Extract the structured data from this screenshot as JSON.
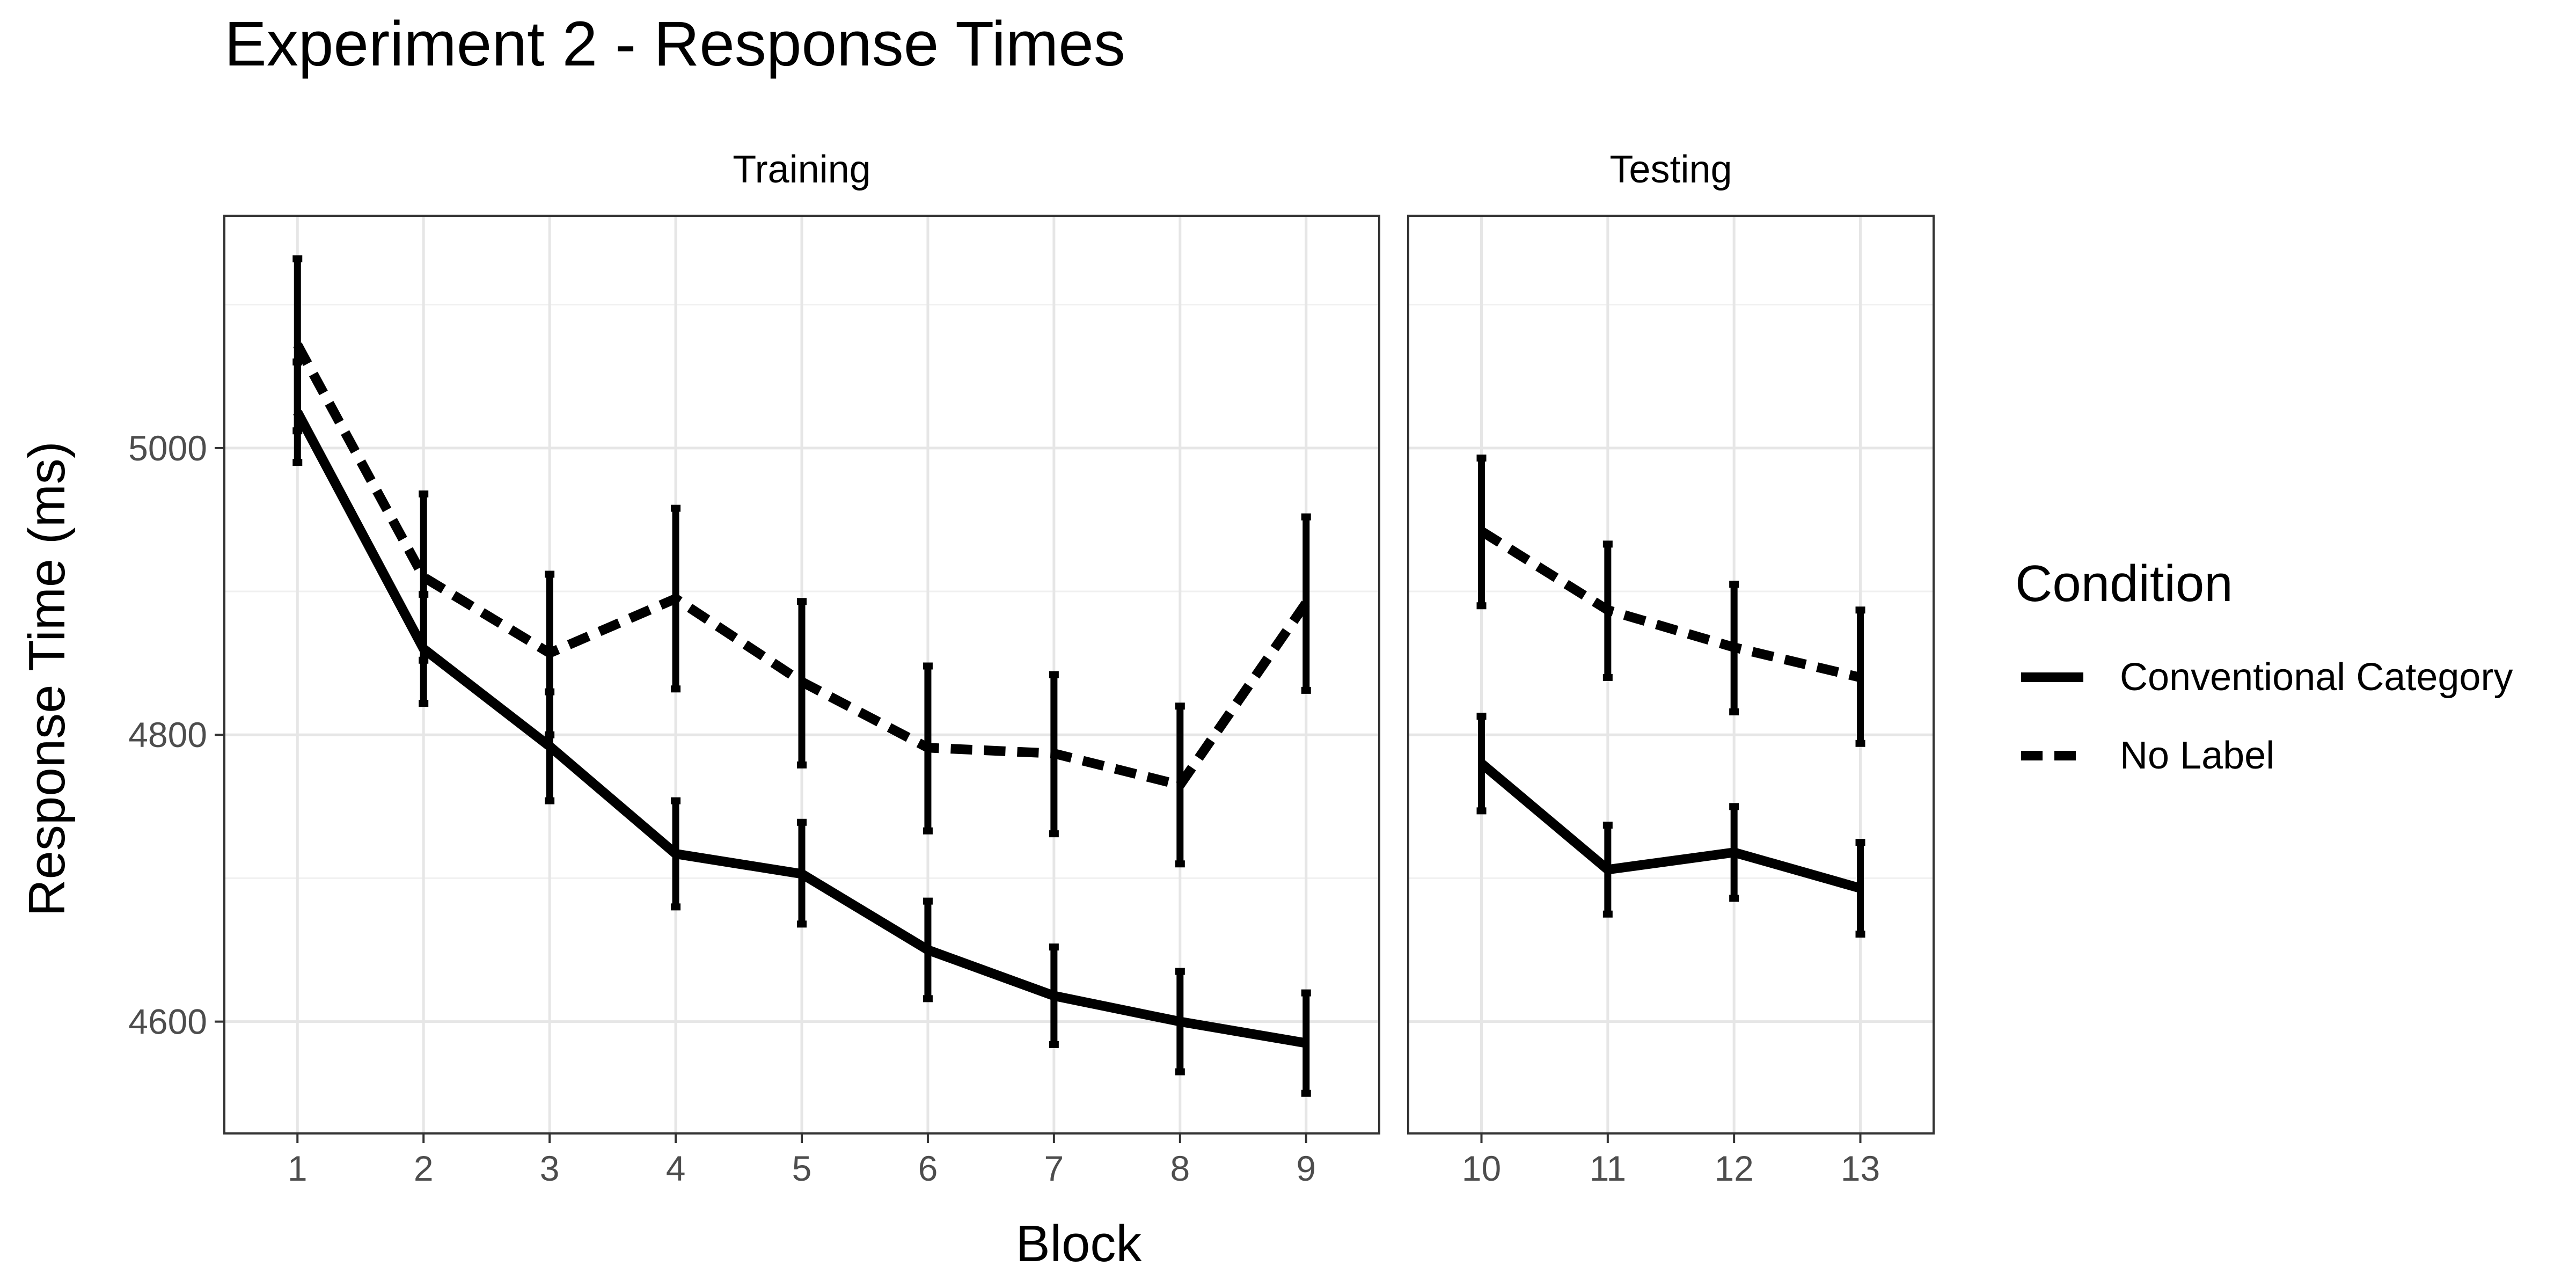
{
  "chart_data": {
    "type": "line",
    "title": "Experiment 2 - Response Times",
    "xlabel": "Block",
    "ylabel": "Response Time (ms)",
    "ylim": [
      4522,
      5162
    ],
    "yticks": [
      4600,
      4800,
      5000
    ],
    "grid": true,
    "panels": [
      {
        "name": "Training",
        "x": [
          1,
          2,
          3,
          4,
          5,
          6,
          7,
          8,
          9
        ],
        "xlim": [
          0.42,
          9.58
        ]
      },
      {
        "name": "Testing",
        "x": [
          10,
          11,
          12,
          13
        ],
        "xlim": [
          9.42,
          13.58
        ]
      }
    ],
    "legend": {
      "title": "Condition",
      "position": "right"
    },
    "series": [
      {
        "name": "Conventional Category",
        "linestyle": "solid",
        "color": "#000000",
        "x": [
          1,
          2,
          3,
          4,
          5,
          6,
          7,
          8,
          9,
          10,
          11,
          12,
          13
        ],
        "y": [
          5025,
          4860,
          4792,
          4717,
          4703,
          4650,
          4618,
          4600,
          4585,
          4780,
          4706,
          4718,
          4693
        ],
        "ymin": [
          4990,
          4822,
          4754,
          4680,
          4668,
          4616,
          4584,
          4565,
          4550,
          4747,
          4675,
          4686,
          4661
        ],
        "ymax": [
          5060,
          4898,
          4830,
          4754,
          4739,
          4684,
          4652,
          4635,
          4620,
          4813,
          4737,
          4750,
          4725
        ]
      },
      {
        "name": "No Label",
        "linestyle": "dashed",
        "color": "#000000",
        "x": [
          1,
          2,
          3,
          4,
          5,
          6,
          7,
          8,
          9,
          10,
          11,
          12,
          13
        ],
        "y": [
          5072,
          4910,
          4857,
          4895,
          4837,
          4791,
          4787,
          4765,
          4892,
          4942,
          4887,
          4861,
          4840
        ],
        "ymin": [
          5012,
          4852,
          4800,
          4832,
          4779,
          4733,
          4731,
          4710,
          4831,
          4890,
          4840,
          4816,
          4794
        ],
        "ymax": [
          5132,
          4968,
          4912,
          4958,
          4893,
          4848,
          4842,
          4820,
          4952,
          4993,
          4933,
          4905,
          4887
        ]
      }
    ]
  }
}
